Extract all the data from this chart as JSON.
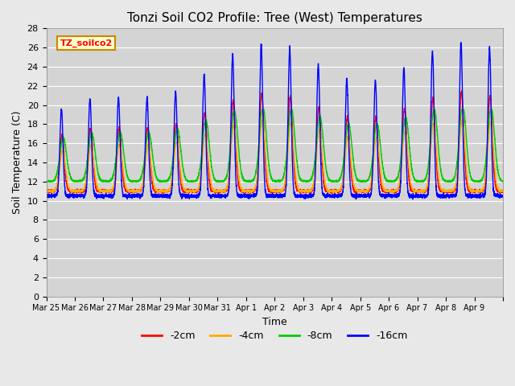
{
  "title": "Tonzi Soil CO2 Profile: Tree (West) Temperatures",
  "xlabel": "Time",
  "ylabel": "Soil Temperature (C)",
  "ylim": [
    0,
    28
  ],
  "yticks": [
    0,
    2,
    4,
    6,
    8,
    10,
    12,
    14,
    16,
    18,
    20,
    22,
    24,
    26,
    28
  ],
  "fig_bg_color": "#e8e8e8",
  "plot_bg_color": "#d4d4d4",
  "series_colors": [
    "#ff0000",
    "#ffaa00",
    "#00cc00",
    "#0000ff"
  ],
  "series_labels": [
    "-2cm",
    "-4cm",
    "-8cm",
    "-16cm"
  ],
  "legend_label": "TZ_soilco2",
  "legend_bg": "#ffffcc",
  "legend_border": "#cc8800",
  "tick_labels": [
    "Mar 25",
    "Mar 26",
    "Mar 27",
    "Mar 28",
    "Mar 29",
    "Mar 30",
    "Mar 31",
    "Apr 1",
    "Apr 2",
    "Apr 3",
    "Apr 4",
    "Apr 5",
    "Apr 6",
    "Apr 7",
    "Apr 8",
    "Apr 9"
  ],
  "n_days": 16,
  "samples_per_day": 288
}
